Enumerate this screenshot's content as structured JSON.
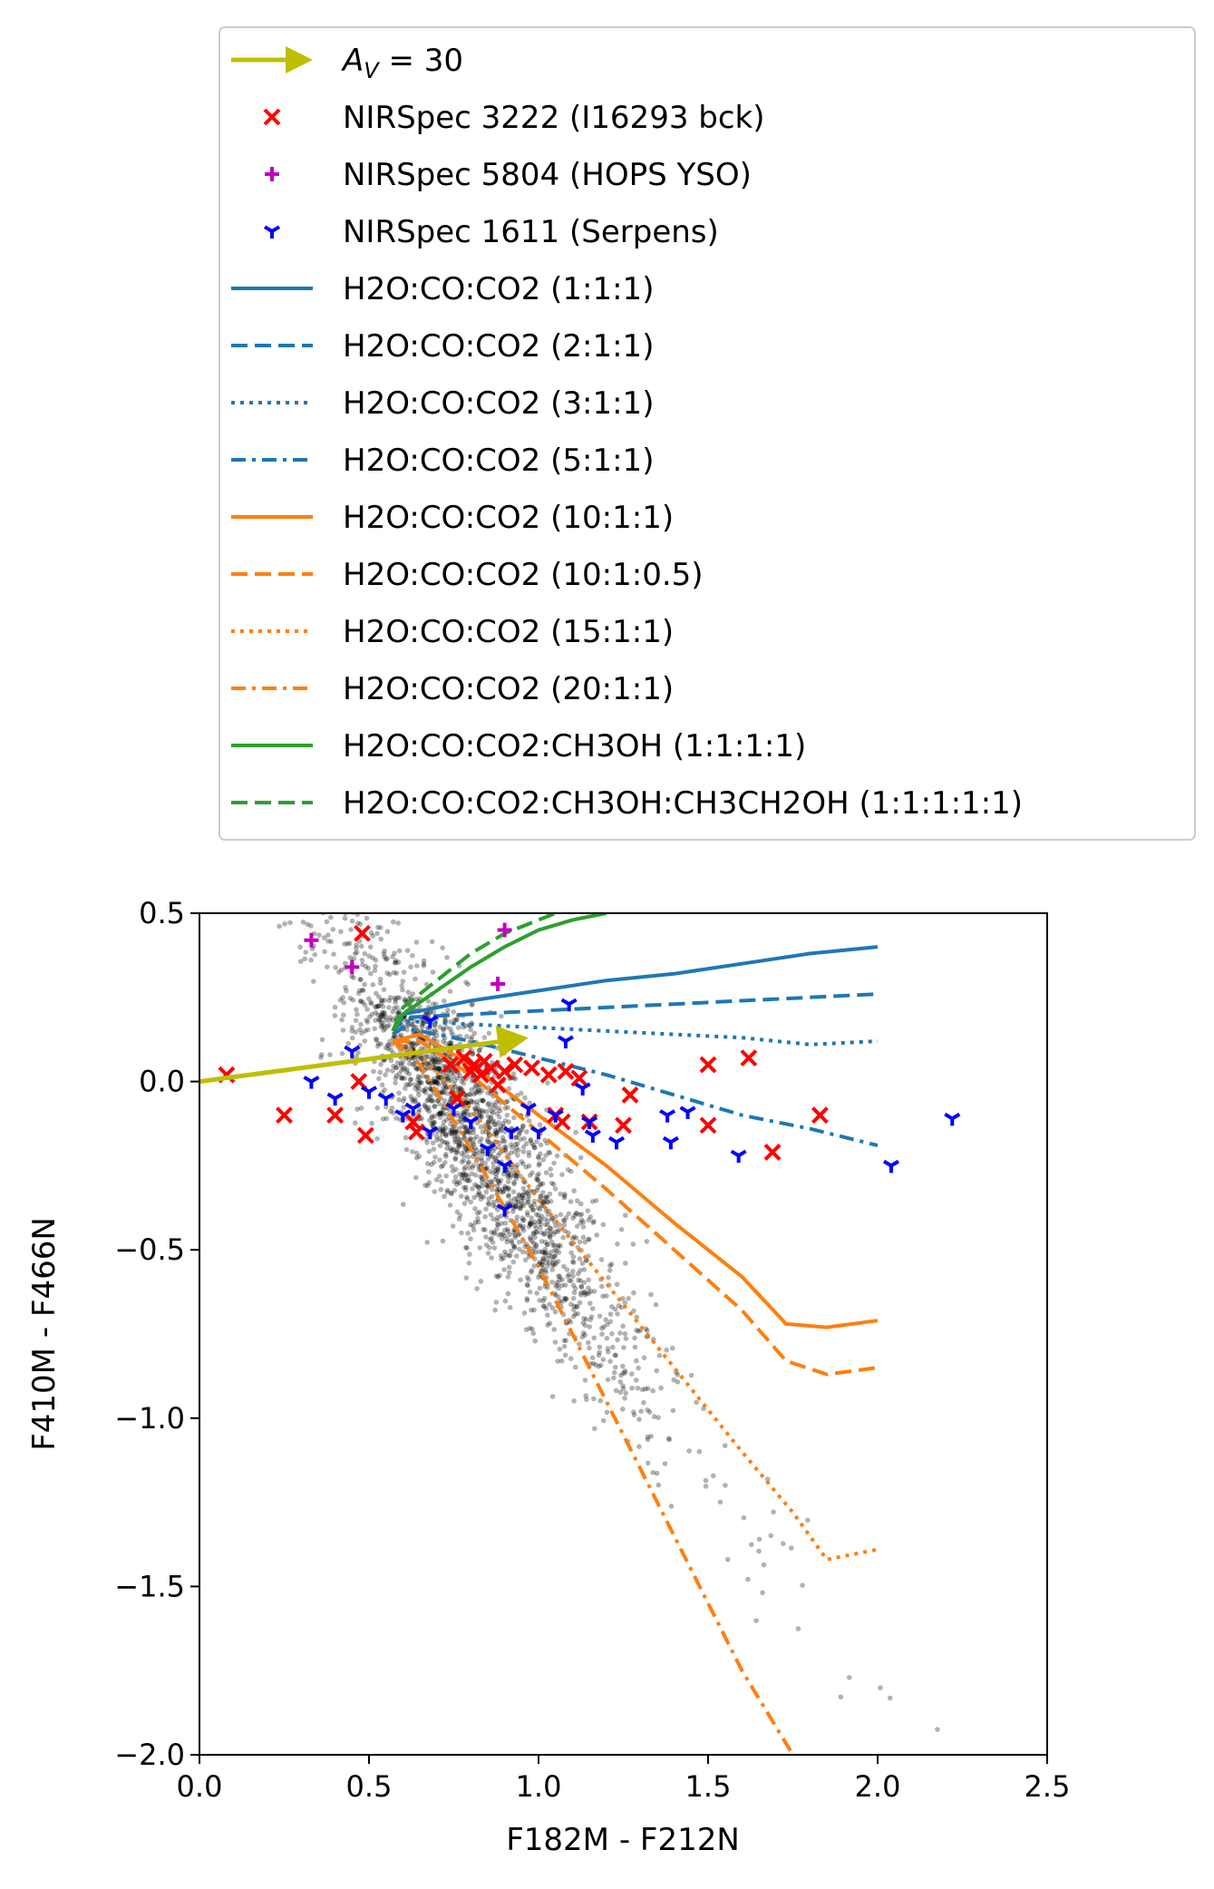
{
  "chart_data": {
    "type": "scatter",
    "xlabel": "F182M - F212N",
    "ylabel": "F410M - F466N",
    "xlim": [
      0.0,
      2.5
    ],
    "ylim": [
      -2.0,
      0.5
    ],
    "x_ticks": [
      0.0,
      0.5,
      1.0,
      1.5,
      2.0,
      2.5
    ],
    "x_tick_labels": [
      "0.0",
      "0.5",
      "1.0",
      "1.5",
      "2.0",
      "2.5"
    ],
    "y_ticks": [
      0.5,
      0.0,
      -0.5,
      -1.0,
      -1.5,
      -2.0
    ],
    "y_tick_labels": [
      "0.5",
      "0.0",
      "−0.5",
      "−1.0",
      "−1.5",
      "−2.0"
    ],
    "grid": false,
    "legend_placement": "above plot",
    "background_points": {
      "description_color": "#000000",
      "note": "dense black cloud of field sources",
      "cloud": {
        "center": [
          0.75,
          -0.05
        ],
        "spread_x": 0.24,
        "spread_y": 0.16,
        "slope": -1.45,
        "count": 2600
      }
    },
    "arrow": {
      "label": "A_V = 30",
      "label_prefix": "A",
      "label_sub": "V",
      "label_suffix": " = 30",
      "color": "#bfbf00",
      "start": [
        0.0,
        0.0
      ],
      "end": [
        0.97,
        0.13
      ]
    },
    "series": [
      {
        "name": "NIRSpec 3222 (I16293 bck)",
        "marker": "x",
        "color": "#ff0000",
        "points": [
          [
            0.08,
            0.02
          ],
          [
            0.25,
            -0.1
          ],
          [
            0.4,
            -0.1
          ],
          [
            0.47,
            0.0
          ],
          [
            0.49,
            -0.16
          ],
          [
            0.48,
            0.44
          ],
          [
            0.63,
            -0.12
          ],
          [
            0.64,
            -0.15
          ],
          [
            0.74,
            0.05
          ],
          [
            0.76,
            -0.05
          ],
          [
            0.78,
            0.07
          ],
          [
            0.8,
            0.03
          ],
          [
            0.81,
            0.05
          ],
          [
            0.83,
            0.02
          ],
          [
            0.84,
            0.06
          ],
          [
            0.86,
            0.04
          ],
          [
            0.88,
            -0.01
          ],
          [
            0.9,
            0.03
          ],
          [
            0.93,
            0.05
          ],
          [
            0.98,
            0.04
          ],
          [
            1.03,
            0.02
          ],
          [
            1.05,
            -0.1
          ],
          [
            1.07,
            -0.12
          ],
          [
            1.08,
            0.03
          ],
          [
            1.12,
            0.01
          ],
          [
            1.15,
            -0.12
          ],
          [
            1.25,
            -0.13
          ],
          [
            1.27,
            -0.04
          ],
          [
            1.5,
            0.05
          ],
          [
            1.5,
            -0.13
          ],
          [
            1.62,
            0.07
          ],
          [
            1.69,
            -0.21
          ],
          [
            1.83,
            -0.1
          ]
        ]
      },
      {
        "name": "NIRSpec 5804 (HOPS YSO)",
        "marker": "+",
        "color": "#c000c0",
        "points": [
          [
            0.33,
            0.42
          ],
          [
            0.45,
            0.34
          ],
          [
            0.9,
            0.45
          ],
          [
            0.88,
            0.29
          ]
        ]
      },
      {
        "name": "NIRSpec 1611 (Serpens)",
        "marker": "tri_down",
        "color": "#0000ff",
        "points": [
          [
            0.33,
            0.0
          ],
          [
            0.4,
            -0.05
          ],
          [
            0.45,
            0.09
          ],
          [
            0.5,
            -0.03
          ],
          [
            0.55,
            -0.05
          ],
          [
            0.6,
            -0.1
          ],
          [
            0.63,
            -0.08
          ],
          [
            0.68,
            -0.15
          ],
          [
            0.75,
            -0.08
          ],
          [
            0.8,
            -0.12
          ],
          [
            0.85,
            -0.2
          ],
          [
            0.9,
            -0.25
          ],
          [
            0.92,
            -0.15
          ],
          [
            0.97,
            -0.08
          ],
          [
            1.0,
            -0.15
          ],
          [
            1.05,
            -0.1
          ],
          [
            1.08,
            0.12
          ],
          [
            1.09,
            0.23
          ],
          [
            1.13,
            -0.02
          ],
          [
            1.15,
            -0.12
          ],
          [
            1.16,
            -0.16
          ],
          [
            1.23,
            -0.18
          ],
          [
            1.38,
            -0.1
          ],
          [
            1.39,
            -0.18
          ],
          [
            1.44,
            -0.09
          ],
          [
            1.59,
            -0.22
          ],
          [
            2.04,
            -0.25
          ],
          [
            2.22,
            -0.11
          ],
          [
            0.68,
            0.18
          ],
          [
            0.9,
            -0.38
          ]
        ]
      },
      {
        "name": "H2O:CO:CO2 (1:1:1)",
        "color": "#1f77b4",
        "dash": "solid",
        "x": [
          0.57,
          0.6,
          0.8,
          1.0,
          1.2,
          1.4,
          1.6,
          1.8,
          2.0
        ],
        "y": [
          0.15,
          0.2,
          0.24,
          0.27,
          0.3,
          0.32,
          0.35,
          0.38,
          0.4
        ]
      },
      {
        "name": "H2O:CO:CO2 (2:1:1)",
        "color": "#1f77b4",
        "dash": "dashed",
        "x": [
          0.57,
          0.6,
          0.8,
          1.0,
          1.2,
          1.4,
          1.6,
          1.8,
          2.0
        ],
        "y": [
          0.15,
          0.19,
          0.2,
          0.21,
          0.22,
          0.23,
          0.24,
          0.25,
          0.26
        ]
      },
      {
        "name": "H2O:CO:CO2 (3:1:1)",
        "color": "#1f77b4",
        "dash": "dotted",
        "x": [
          0.57,
          0.6,
          0.8,
          1.0,
          1.2,
          1.4,
          1.6,
          1.8,
          2.0
        ],
        "y": [
          0.15,
          0.18,
          0.17,
          0.16,
          0.15,
          0.14,
          0.13,
          0.11,
          0.12
        ]
      },
      {
        "name": "H2O:CO:CO2 (5:1:1)",
        "color": "#1f77b4",
        "dash": "dashdot",
        "x": [
          0.57,
          0.6,
          0.8,
          1.0,
          1.2,
          1.4,
          1.6,
          1.8,
          2.0
        ],
        "y": [
          0.14,
          0.16,
          0.12,
          0.07,
          0.02,
          -0.04,
          -0.1,
          -0.14,
          -0.19
        ]
      },
      {
        "name": "H2O:CO:CO2 (10:1:1)",
        "color": "#ff7f0e",
        "dash": "solid",
        "x": [
          0.57,
          0.65,
          0.8,
          1.0,
          1.2,
          1.4,
          1.6,
          1.73,
          1.85,
          2.0
        ],
        "y": [
          0.12,
          0.14,
          0.05,
          -0.1,
          -0.25,
          -0.42,
          -0.58,
          -0.72,
          -0.73,
          -0.71
        ]
      },
      {
        "name": "H2O:CO:CO2 (10:1:0.5)",
        "color": "#ff7f0e",
        "dash": "dashed",
        "x": [
          0.57,
          0.65,
          0.8,
          1.0,
          1.2,
          1.4,
          1.6,
          1.73,
          1.85,
          2.0
        ],
        "y": [
          0.12,
          0.12,
          0.02,
          -0.15,
          -0.32,
          -0.5,
          -0.68,
          -0.83,
          -0.87,
          -0.85
        ]
      },
      {
        "name": "H2O:CO:CO2 (15:1:1)",
        "color": "#ff7f0e",
        "dash": "dotted",
        "x": [
          0.57,
          0.65,
          0.8,
          1.0,
          1.2,
          1.4,
          1.6,
          1.75,
          1.85,
          2.0
        ],
        "y": [
          0.12,
          0.08,
          -0.08,
          -0.35,
          -0.6,
          -0.85,
          -1.1,
          -1.28,
          -1.42,
          -1.39
        ]
      },
      {
        "name": "H2O:CO:CO2 (20:1:1)",
        "color": "#ff7f0e",
        "dash": "dashdot",
        "x": [
          0.57,
          0.65,
          0.8,
          1.0,
          1.2,
          1.4,
          1.6,
          1.75
        ],
        "y": [
          0.12,
          0.05,
          -0.2,
          -0.55,
          -0.95,
          -1.35,
          -1.75,
          -2.0
        ]
      },
      {
        "name": "H2O:CO:CO2:CH3OH (1:1:1:1)",
        "color": "#2ca02c",
        "dash": "solid",
        "x": [
          0.57,
          0.6,
          0.7,
          0.8,
          0.9,
          1.0,
          1.1,
          1.2
        ],
        "y": [
          0.15,
          0.2,
          0.27,
          0.34,
          0.4,
          0.45,
          0.48,
          0.5
        ]
      },
      {
        "name": "H2O:CO:CO2:CH3OH:CH3CH2OH (1:1:1:1:1)",
        "color": "#2ca02c",
        "dash": "dashed",
        "x": [
          0.57,
          0.6,
          0.7,
          0.8,
          0.9,
          1.0,
          1.05
        ],
        "y": [
          0.15,
          0.22,
          0.3,
          0.38,
          0.44,
          0.48,
          0.5
        ]
      }
    ]
  }
}
